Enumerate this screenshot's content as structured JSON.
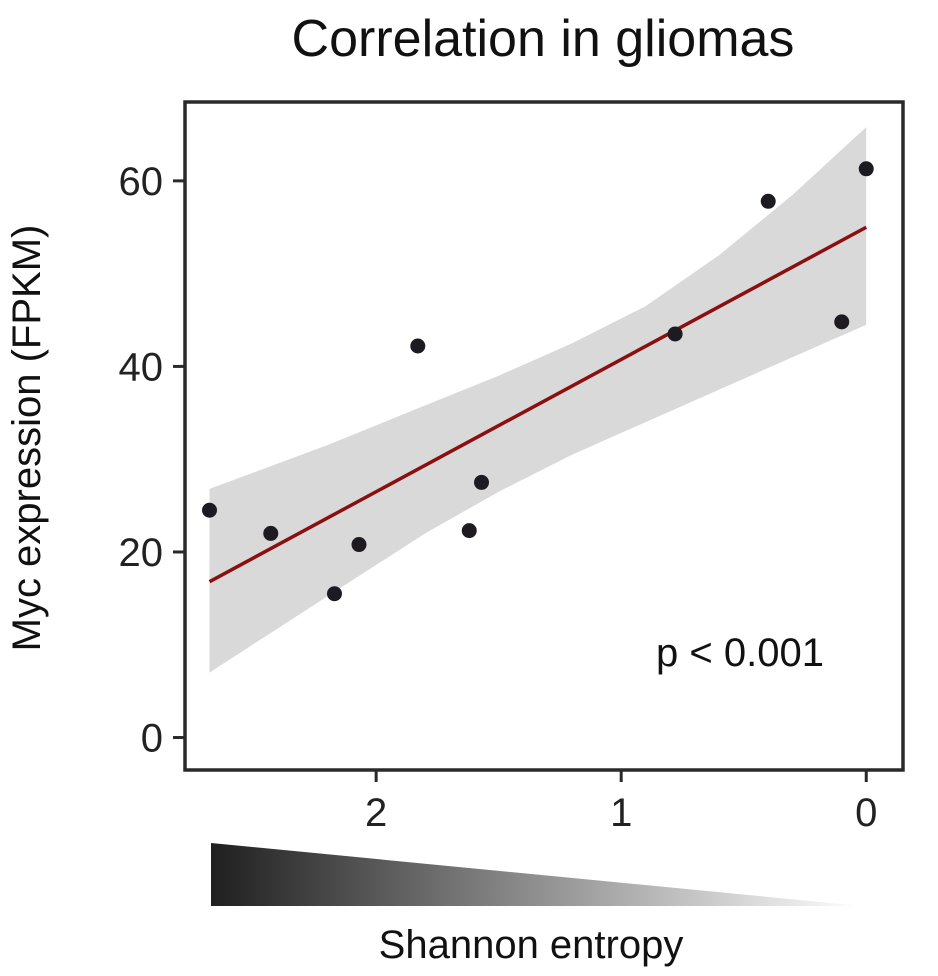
{
  "chart_data": {
    "type": "scatter",
    "title": "Correlation in gliomas",
    "xlabel": "Shannon entropy",
    "ylabel": "Myc expression (FPKM)",
    "x_reversed": true,
    "xlim": [
      2.78,
      -0.15
    ],
    "ylim": [
      -3.5,
      68.5
    ],
    "xticks": [
      2,
      1,
      0
    ],
    "yticks": [
      0,
      20,
      40,
      60
    ],
    "points": [
      {
        "x": 2.68,
        "y": 24.5
      },
      {
        "x": 2.43,
        "y": 22.0
      },
      {
        "x": 2.17,
        "y": 15.5
      },
      {
        "x": 2.07,
        "y": 20.8
      },
      {
        "x": 1.83,
        "y": 42.2
      },
      {
        "x": 1.62,
        "y": 22.3
      },
      {
        "x": 1.57,
        "y": 27.5
      },
      {
        "x": 0.78,
        "y": 43.5
      },
      {
        "x": 0.4,
        "y": 57.8
      },
      {
        "x": 0.1,
        "y": 44.8
      },
      {
        "x": 0.0,
        "y": 61.3
      }
    ],
    "fit_line": {
      "x": [
        2.68,
        0.0
      ],
      "y": [
        16.8,
        55.0
      ]
    },
    "confidence_band": {
      "x": [
        2.68,
        2.2,
        1.8,
        1.5,
        1.2,
        0.9,
        0.6,
        0.3,
        0.0
      ],
      "lower": [
        7.0,
        15.2,
        22.0,
        26.5,
        30.5,
        34.0,
        37.5,
        41.0,
        44.5
      ],
      "upper": [
        26.8,
        31.5,
        35.8,
        39.0,
        42.5,
        46.5,
        52.0,
        58.5,
        65.8
      ]
    },
    "annotation": "p < 0.001",
    "colors": {
      "points": "#1e1a22",
      "fit_line": "#8b0f0f",
      "band": "#d9d9d9",
      "axis": "#2a2a2a",
      "gradient_dark": "#1f1f1f",
      "gradient_light": "#ffffff"
    }
  }
}
